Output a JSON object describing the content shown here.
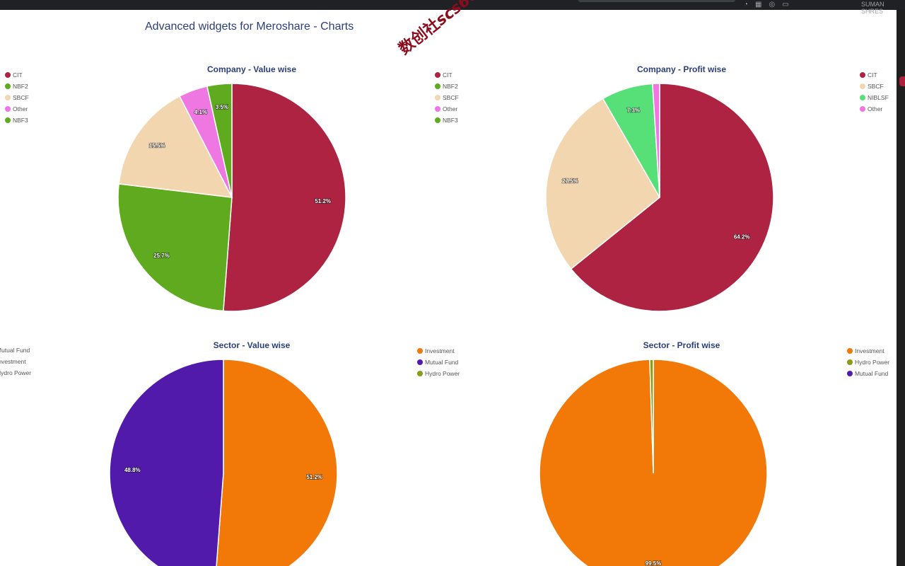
{
  "page": {
    "title": "Advanced widgets for Meroshare - Charts",
    "watermark_cjk": "数创社",
    "watermark_latin": "scs66",
    "browser_user": "SUMAN SHRES"
  },
  "chart_data": [
    {
      "type": "pie",
      "title": "Company - Value wise",
      "legend": [
        "CIT",
        "NBF2",
        "SBCF",
        "Other",
        "NBF3"
      ],
      "legend_placement": "left",
      "slices": [
        {
          "label": "CIT",
          "value": 51.2,
          "display": "51.2%",
          "color": "#ae2341"
        },
        {
          "label": "NBF2",
          "value": 25.7,
          "display": "25.7%",
          "color": "#5faa1f"
        },
        {
          "label": "SBCF",
          "value": 15.5,
          "display": "15.5%",
          "color": "#f2d6b0"
        },
        {
          "label": "Other",
          "value": 4.1,
          "display": "4.1%",
          "color": "#ee77e1"
        },
        {
          "label": "NBF3",
          "value": 3.5,
          "display": "3.5%",
          "color": "#5faa1f"
        }
      ]
    },
    {
      "type": "pie",
      "title": "Company - Profit wise",
      "legend": [
        "CIT",
        "SBCF",
        "NIBLSF",
        "Other"
      ],
      "legend_placement": "right",
      "slices": [
        {
          "label": "CIT",
          "value": 64.2,
          "display": "64.2%",
          "color": "#ae2341"
        },
        {
          "label": "SBCF",
          "value": 27.5,
          "display": "27.5%",
          "color": "#f2d6b0"
        },
        {
          "label": "NIBLSF",
          "value": 7.3,
          "display": "7.3%",
          "color": "#57e077"
        },
        {
          "label": "Other",
          "value": 1.0,
          "display": "",
          "color": "#ee77e1"
        }
      ]
    },
    {
      "type": "pie",
      "title": "Sector - Value wise",
      "legend": [
        "Mutual Fund",
        "Investment",
        "Hydro Power"
      ],
      "legend_placement": "left",
      "slices": [
        {
          "label": "Investment",
          "value": 51.2,
          "display": "51.2%",
          "color": "#f27907"
        },
        {
          "label": "Mutual Fund",
          "value": 48.8,
          "display": "48.8%",
          "color": "#521aab"
        }
      ]
    },
    {
      "type": "pie",
      "title": "Sector - Profit wise",
      "legend": [
        "Investment",
        "Hydro Power",
        "Mutual Fund"
      ],
      "legend_placement": "right",
      "slices": [
        {
          "label": "Investment",
          "value": 99.5,
          "display": "99.5%",
          "color": "#f27907"
        },
        {
          "label": "Hydro Power",
          "value": 0.5,
          "display": "",
          "color": "#8a9a1a"
        }
      ]
    }
  ],
  "orphan_legends": [
    {
      "of_chart": "Company - Profit wise",
      "items": [
        {
          "label": "CIT",
          "color": "#ae2341"
        },
        {
          "label": "NBF2",
          "color": "#5faa1f"
        },
        {
          "label": "SBCF",
          "color": "#f2d6b0"
        },
        {
          "label": "Other",
          "color": "#ee77e1"
        },
        {
          "label": "NBF3",
          "color": "#5faa1f"
        }
      ]
    },
    {
      "of_chart": "Sector - Profit wise",
      "items": [
        {
          "label": "Investment",
          "color": "#f27907"
        },
        {
          "label": "Mutual Fund",
          "color": "#521aab"
        },
        {
          "label": "Hydro Power",
          "color": "#8a9a1a"
        }
      ]
    }
  ],
  "legend_colors": {
    "CIT": "#ae2341",
    "NBF2": "#5faa1f",
    "SBCF": "#f2d6b0",
    "Other": "#ee77e1",
    "NBF3": "#5faa1f",
    "NIBLSF": "#57e077",
    "Investment": "#f27907",
    "Mutual Fund": "#521aab",
    "Hydro Power": "#8a9a1a"
  }
}
